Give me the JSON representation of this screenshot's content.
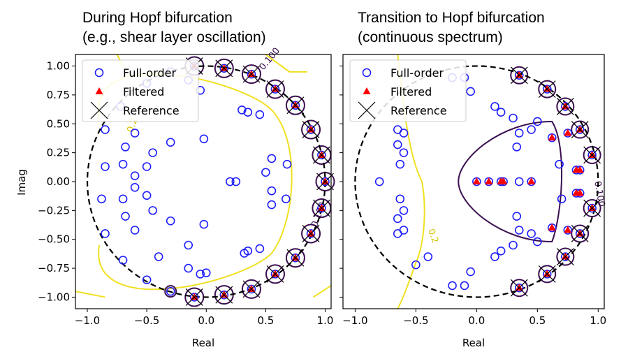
{
  "chart_data": [
    {
      "type": "scatter",
      "title_line1": "During Hopf bifurcation",
      "title_line2": "(e.g., shear layer oscillation)",
      "xlabel": "Real",
      "ylabel": "Imag",
      "xlim": [
        -1.1,
        1.05
      ],
      "ylim": [
        -1.1,
        1.1
      ],
      "xticks": [
        "−1.0",
        "−0.5",
        "0.0",
        "0.5",
        "1.0"
      ],
      "xtick_values": [
        -1.0,
        -0.5,
        0.0,
        0.5,
        1.0
      ],
      "yticks": [
        "1.00",
        "0.75",
        "0.50",
        "0.25",
        "0.00",
        "−0.25",
        "−0.50",
        "−0.75",
        "−1.00"
      ],
      "ytick_values": [
        1.0,
        0.75,
        0.5,
        0.25,
        0.0,
        -0.25,
        -0.5,
        -0.75,
        -1.0
      ],
      "legend": [
        "Full-order",
        "Filtered",
        "Reference"
      ],
      "legend_position": "top-left",
      "unit_circle": true,
      "series": [
        {
          "name": "Full-order",
          "marker": "open-circle",
          "color": "#1f1fff",
          "points": [
            [
              -0.1,
              1.0
            ],
            [
              0.15,
              0.98
            ],
            [
              0.38,
              0.93
            ],
            [
              0.58,
              0.8
            ],
            [
              0.75,
              0.66
            ],
            [
              0.88,
              0.45
            ],
            [
              0.97,
              0.23
            ],
            [
              1.0,
              0.0
            ],
            [
              0.97,
              -0.23
            ],
            [
              0.88,
              -0.45
            ],
            [
              0.75,
              -0.66
            ],
            [
              0.58,
              -0.8
            ],
            [
              0.38,
              -0.93
            ],
            [
              0.15,
              -0.98
            ],
            [
              -0.1,
              -1.0
            ],
            [
              -0.3,
              -0.95
            ],
            [
              -0.5,
              -0.85
            ],
            [
              -0.7,
              -0.68
            ],
            [
              -0.85,
              -0.45
            ],
            [
              -0.88,
              -0.15
            ],
            [
              -0.85,
              0.45
            ],
            [
              -0.72,
              0.65
            ],
            [
              -0.5,
              0.85
            ],
            [
              -0.3,
              0.95
            ],
            [
              -0.15,
              0.88
            ],
            [
              -0.05,
              0.79
            ],
            [
              0.3,
              0.62
            ],
            [
              0.35,
              0.6
            ],
            [
              0.45,
              0.58
            ],
            [
              -0.6,
              0.42
            ],
            [
              -0.45,
              0.25
            ],
            [
              -0.3,
              0.34
            ],
            [
              -0.68,
              0.3
            ],
            [
              -0.7,
              0.15
            ],
            [
              -0.5,
              0.13
            ],
            [
              -0.6,
              0.05
            ],
            [
              -0.85,
              0.13
            ],
            [
              -0.02,
              0.37
            ],
            [
              0.2,
              0.0
            ],
            [
              0.25,
              0.0
            ],
            [
              0.55,
              0.2
            ],
            [
              0.68,
              0.15
            ],
            [
              0.5,
              0.08
            ],
            [
              0.55,
              -0.08
            ],
            [
              0.67,
              -0.15
            ],
            [
              0.55,
              -0.2
            ],
            [
              -0.7,
              -0.15
            ],
            [
              -0.5,
              -0.12
            ],
            [
              -0.6,
              -0.05
            ],
            [
              -0.45,
              -0.25
            ],
            [
              -0.68,
              -0.3
            ],
            [
              -0.6,
              -0.42
            ],
            [
              -0.3,
              -0.34
            ],
            [
              -0.02,
              -0.37
            ],
            [
              -0.15,
              -0.55
            ],
            [
              -0.15,
              -0.75
            ],
            [
              0.35,
              -0.6
            ],
            [
              0.45,
              -0.58
            ],
            [
              0.32,
              -0.62
            ],
            [
              -0.4,
              -0.65
            ],
            [
              -0.05,
              -0.8
            ],
            [
              0.0,
              -0.79
            ]
          ]
        },
        {
          "name": "Filtered",
          "marker": "triangle",
          "color": "#ff0000",
          "points": [
            [
              -0.1,
              1.0
            ],
            [
              0.15,
              0.98
            ],
            [
              0.38,
              0.93
            ],
            [
              0.58,
              0.8
            ],
            [
              0.75,
              0.66
            ],
            [
              0.88,
              0.45
            ],
            [
              0.97,
              0.23
            ],
            [
              1.0,
              0.0
            ],
            [
              0.97,
              -0.23
            ],
            [
              0.88,
              -0.45
            ],
            [
              0.75,
              -0.66
            ],
            [
              0.58,
              -0.8
            ],
            [
              0.38,
              -0.93
            ],
            [
              0.15,
              -0.98
            ],
            [
              -0.1,
              -1.0
            ]
          ]
        },
        {
          "name": "Reference",
          "marker": "x",
          "color": "#000000",
          "points": [
            [
              -0.1,
              1.0
            ],
            [
              0.15,
              0.98
            ],
            [
              0.38,
              0.93
            ],
            [
              0.58,
              0.8
            ],
            [
              0.75,
              0.66
            ],
            [
              0.88,
              0.45
            ],
            [
              0.97,
              0.23
            ],
            [
              1.0,
              0.0
            ],
            [
              0.97,
              -0.23
            ],
            [
              0.88,
              -0.45
            ],
            [
              0.75,
              -0.66
            ],
            [
              0.58,
              -0.8
            ],
            [
              0.38,
              -0.93
            ],
            [
              0.15,
              -0.98
            ],
            [
              -0.1,
              -1.0
            ]
          ]
        }
      ],
      "contour_labels": [
        "0.100",
        "0.2",
        "0.100"
      ]
    },
    {
      "type": "scatter",
      "title_line1": "Transition to Hopf bifurcation",
      "title_line2": "(continuous spectrum)",
      "xlabel": "Real",
      "ylabel": "",
      "xlim": [
        -1.1,
        1.05
      ],
      "ylim": [
        -1.1,
        1.1
      ],
      "xticks": [
        "−1.0",
        "−0.5",
        "0.0",
        "0.5",
        "1.0"
      ],
      "xtick_values": [
        -1.0,
        -0.5,
        0.0,
        0.5,
        1.0
      ],
      "legend": [
        "Full-order",
        "Filtered",
        "Reference"
      ],
      "legend_position": "top-left",
      "unit_circle": true,
      "series": [
        {
          "name": "Full-order",
          "marker": "open-circle",
          "color": "#1f1fff",
          "points": [
            [
              0.35,
              0.92
            ],
            [
              0.58,
              0.8
            ],
            [
              0.73,
              0.65
            ],
            [
              0.85,
              0.45
            ],
            [
              0.95,
              0.23
            ],
            [
              0.62,
              0.38
            ],
            [
              0.75,
              0.42
            ],
            [
              0.82,
              0.1
            ],
            [
              0.85,
              0.1
            ],
            [
              0.95,
              -0.23
            ],
            [
              0.85,
              -0.45
            ],
            [
              0.73,
              -0.65
            ],
            [
              0.58,
              -0.8
            ],
            [
              0.35,
              -0.92
            ],
            [
              0.0,
              0.0
            ],
            [
              0.1,
              0.0
            ],
            [
              0.2,
              0.0
            ],
            [
              0.22,
              0.0
            ],
            [
              0.35,
              0.0
            ],
            [
              0.45,
              0.0
            ],
            [
              0.62,
              -0.4
            ],
            [
              0.75,
              -0.42
            ],
            [
              0.82,
              -0.1
            ],
            [
              0.85,
              -0.1
            ],
            [
              -0.65,
              0.45
            ],
            [
              -0.6,
              0.42
            ],
            [
              -0.65,
              0.32
            ],
            [
              -0.6,
              0.25
            ],
            [
              -0.63,
              0.15
            ],
            [
              -0.8,
              0.0
            ],
            [
              -0.65,
              -0.32
            ],
            [
              -0.6,
              -0.42
            ],
            [
              -0.65,
              -0.45
            ],
            [
              -0.6,
              -0.25
            ],
            [
              -0.63,
              -0.15
            ],
            [
              -0.1,
              0.9
            ],
            [
              -0.2,
              0.9
            ],
            [
              -0.05,
              0.78
            ],
            [
              0.15,
              0.65
            ],
            [
              0.2,
              0.6
            ],
            [
              0.3,
              0.55
            ],
            [
              0.35,
              0.42
            ],
            [
              0.33,
              0.3
            ],
            [
              0.45,
              0.45
            ],
            [
              0.5,
              0.52
            ],
            [
              -0.1,
              -0.9
            ],
            [
              -0.2,
              -0.9
            ],
            [
              -0.05,
              -0.78
            ],
            [
              0.15,
              -0.65
            ],
            [
              0.2,
              -0.6
            ],
            [
              0.3,
              -0.55
            ],
            [
              0.35,
              -0.42
            ],
            [
              0.33,
              -0.3
            ],
            [
              0.45,
              -0.45
            ],
            [
              0.5,
              -0.52
            ],
            [
              -0.5,
              -0.72
            ],
            [
              -0.4,
              -0.65
            ],
            [
              0.68,
              0.15
            ],
            [
              0.7,
              -0.15
            ]
          ]
        },
        {
          "name": "Filtered",
          "marker": "triangle",
          "color": "#ff0000",
          "points": [
            [
              0.35,
              0.92
            ],
            [
              0.58,
              0.8
            ],
            [
              0.73,
              0.65
            ],
            [
              0.85,
              0.45
            ],
            [
              0.95,
              0.23
            ],
            [
              0.62,
              0.38
            ],
            [
              0.75,
              0.42
            ],
            [
              0.82,
              0.1
            ],
            [
              0.85,
              0.1
            ],
            [
              0.95,
              -0.23
            ],
            [
              0.85,
              -0.45
            ],
            [
              0.73,
              -0.65
            ],
            [
              0.58,
              -0.8
            ],
            [
              0.35,
              -0.92
            ],
            [
              0.0,
              0.0
            ],
            [
              0.1,
              0.0
            ],
            [
              0.2,
              0.0
            ],
            [
              0.22,
              0.0
            ],
            [
              0.45,
              0.0
            ],
            [
              0.62,
              -0.4
            ],
            [
              0.75,
              -0.42
            ],
            [
              0.82,
              -0.1
            ],
            [
              0.85,
              -0.1
            ]
          ]
        },
        {
          "name": "Reference",
          "marker": "x",
          "color": "#000000",
          "points": [
            [
              0.35,
              0.92
            ],
            [
              0.58,
              0.8
            ],
            [
              0.73,
              0.65
            ],
            [
              0.85,
              0.45
            ],
            [
              0.95,
              0.23
            ],
            [
              0.95,
              -0.23
            ],
            [
              0.85,
              -0.45
            ],
            [
              0.73,
              -0.65
            ],
            [
              0.58,
              -0.8
            ],
            [
              0.35,
              -0.92
            ]
          ]
        }
      ],
      "contour_labels": [
        "0.2",
        "0.100"
      ]
    }
  ]
}
